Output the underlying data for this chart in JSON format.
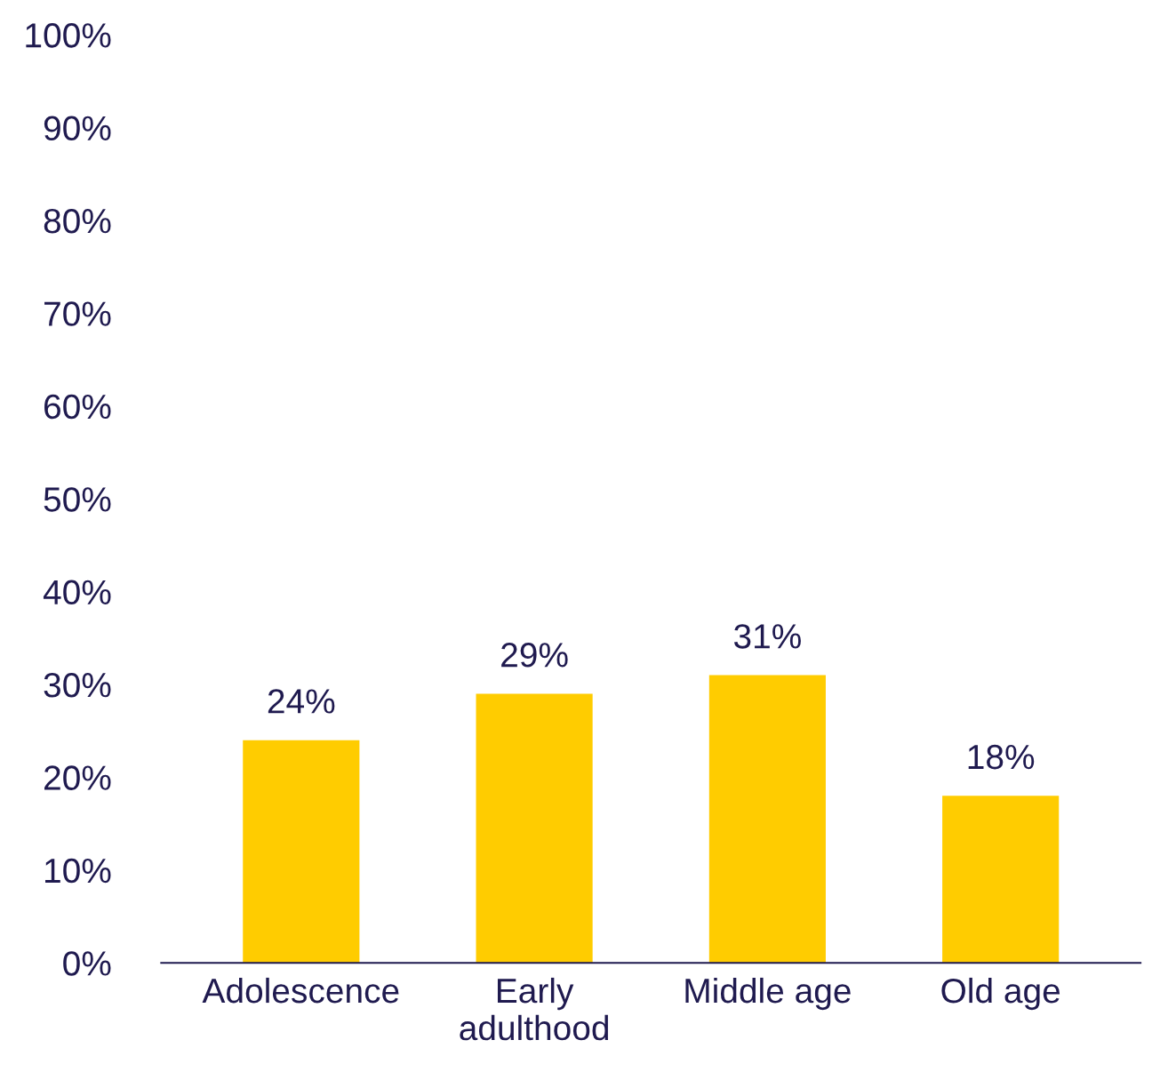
{
  "chart_data": {
    "type": "bar",
    "categories": [
      "Adolescence",
      "Early adulthood",
      "Middle age",
      "Old age"
    ],
    "values": [
      24,
      29,
      31,
      18
    ],
    "value_labels": [
      "24%",
      "29%",
      "31%",
      "18%"
    ],
    "color": "#ffcc00",
    "ylim": [
      0,
      100
    ],
    "yticks": [
      {
        "value": 0,
        "label": "0%"
      },
      {
        "value": 10,
        "label": "10%"
      },
      {
        "value": 20,
        "label": "20%"
      },
      {
        "value": 30,
        "label": "30%"
      },
      {
        "value": 40,
        "label": "40%"
      },
      {
        "value": 50,
        "label": "50%"
      },
      {
        "value": 60,
        "label": "60%"
      },
      {
        "value": 70,
        "label": "70%"
      },
      {
        "value": 80,
        "label": "80%"
      },
      {
        "value": 90,
        "label": "90%"
      },
      {
        "value": 100,
        "label": "100%"
      }
    ],
    "grid": false,
    "legend": false
  }
}
